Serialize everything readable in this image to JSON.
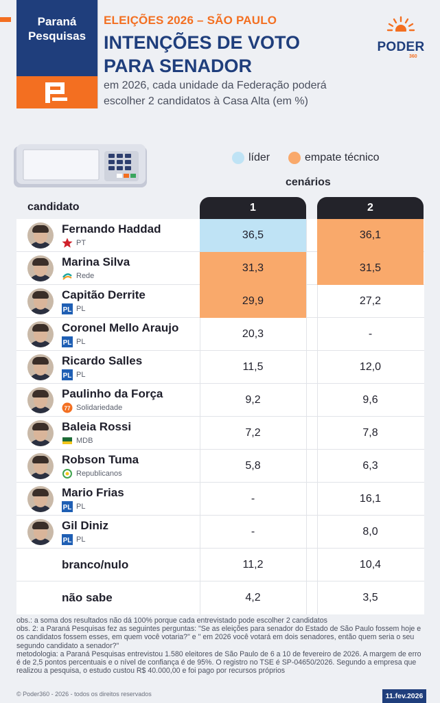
{
  "brand": {
    "line1": "Paraná",
    "line2": "Pesquisas"
  },
  "header": {
    "kicker": "ELEIÇÕES 2026 – SÃO PAULO",
    "title_line1": "INTENÇÕES DE VOTO",
    "title_line2": "PARA SENADOR",
    "subtitle_line1": "em 2026, cada unidade da Federação poderá",
    "subtitle_line2": "escolher 2 candidatos à Casa Alta (em %)"
  },
  "publisher": {
    "name": "PODER",
    "number": "360"
  },
  "legend": {
    "leader_label": "líder",
    "tie_label": "empate técnico",
    "scenarios_label": "cenários",
    "candidate_label": "candidato"
  },
  "colors": {
    "leader": "#bfe3f5",
    "tie": "#f9a96b",
    "navy": "#1f3e7c",
    "orange": "#f36f21"
  },
  "chart_data": {
    "type": "table",
    "title": "INTENÇÕES DE VOTO PARA SENADOR",
    "columns": [
      "1",
      "2"
    ],
    "rows": [
      {
        "name": "Fernando Haddad",
        "party": "PT",
        "party_icon": "star-icon",
        "values": [
          "36,5",
          "36,1"
        ],
        "highlight": [
          "leader",
          "tie"
        ]
      },
      {
        "name": "Marina Silva",
        "party": "Rede",
        "party_icon": "rede-icon",
        "values": [
          "31,3",
          "31,5"
        ],
        "highlight": [
          "tie",
          "tie"
        ]
      },
      {
        "name": "Capitão Derrite",
        "party": "PL",
        "party_icon": "pl-icon",
        "values": [
          "29,9",
          "27,2"
        ],
        "highlight": [
          "tie",
          ""
        ]
      },
      {
        "name": "Coronel Mello Araujo",
        "party": "PL",
        "party_icon": "pl-icon",
        "values": [
          "20,3",
          "-"
        ],
        "highlight": [
          "",
          ""
        ]
      },
      {
        "name": "Ricardo Salles",
        "party": "PL",
        "party_icon": "pl-icon",
        "values": [
          "11,5",
          "12,0"
        ],
        "highlight": [
          "",
          ""
        ]
      },
      {
        "name": "Paulinho da Força",
        "party": "Solidariedade",
        "party_icon": "solidariedade-icon",
        "values": [
          "9,2",
          "9,6"
        ],
        "highlight": [
          "",
          ""
        ]
      },
      {
        "name": "Baleia Rossi",
        "party": "MDB",
        "party_icon": "mdb-icon",
        "values": [
          "7,2",
          "7,8"
        ],
        "highlight": [
          "",
          ""
        ]
      },
      {
        "name": "Robson Tuma",
        "party": "Republicanos",
        "party_icon": "republicanos-icon",
        "values": [
          "5,8",
          "6,3"
        ],
        "highlight": [
          "",
          ""
        ]
      },
      {
        "name": "Mario Frias",
        "party": "PL",
        "party_icon": "pl-icon",
        "values": [
          "-",
          "16,1"
        ],
        "highlight": [
          "",
          ""
        ]
      },
      {
        "name": "Gil Diniz",
        "party": "PL",
        "party_icon": "pl-icon",
        "values": [
          "-",
          "8,0"
        ],
        "highlight": [
          "",
          ""
        ]
      },
      {
        "name": "branco/nulo",
        "party": "",
        "party_icon": "",
        "values": [
          "11,2",
          "10,4"
        ],
        "highlight": [
          "",
          ""
        ]
      },
      {
        "name": "não sabe",
        "party": "",
        "party_icon": "",
        "values": [
          "4,2",
          "3,5"
        ],
        "highlight": [
          "",
          ""
        ]
      }
    ]
  },
  "notes": {
    "obs1": "obs.: a soma dos resultados não dá 100% porque cada entrevistado pode escolher 2 candidatos",
    "obs2": "obs. 2: a Paraná Pesquisas fez as seguintes perguntas: \"Se as eleições para senador do Estado de São Paulo fossem hoje e os candidatos fossem esses, em quem você votaria?\" e \" em 2026 você votará em dois senadores, então quem seria o seu segundo candidato a senador?\"",
    "method": "metodologia: a Paraná Pesquisas entrevistou 1.580 eleitores de São Paulo de 6 a 10 de fevereiro de 2026. A margem de erro é de 2,5 pontos percentuais e o nível de confiança é de 95%. O registro no TSE é SP-04650/2026. Segundo a empresa que realizou a pesquisa, o estudo custou R$ 40.000,00 e foi pago por recursos próprios"
  },
  "footer": {
    "copyright": "© Poder360 - 2026 - todos os direitos reservados",
    "date": "11.fev.2026"
  }
}
